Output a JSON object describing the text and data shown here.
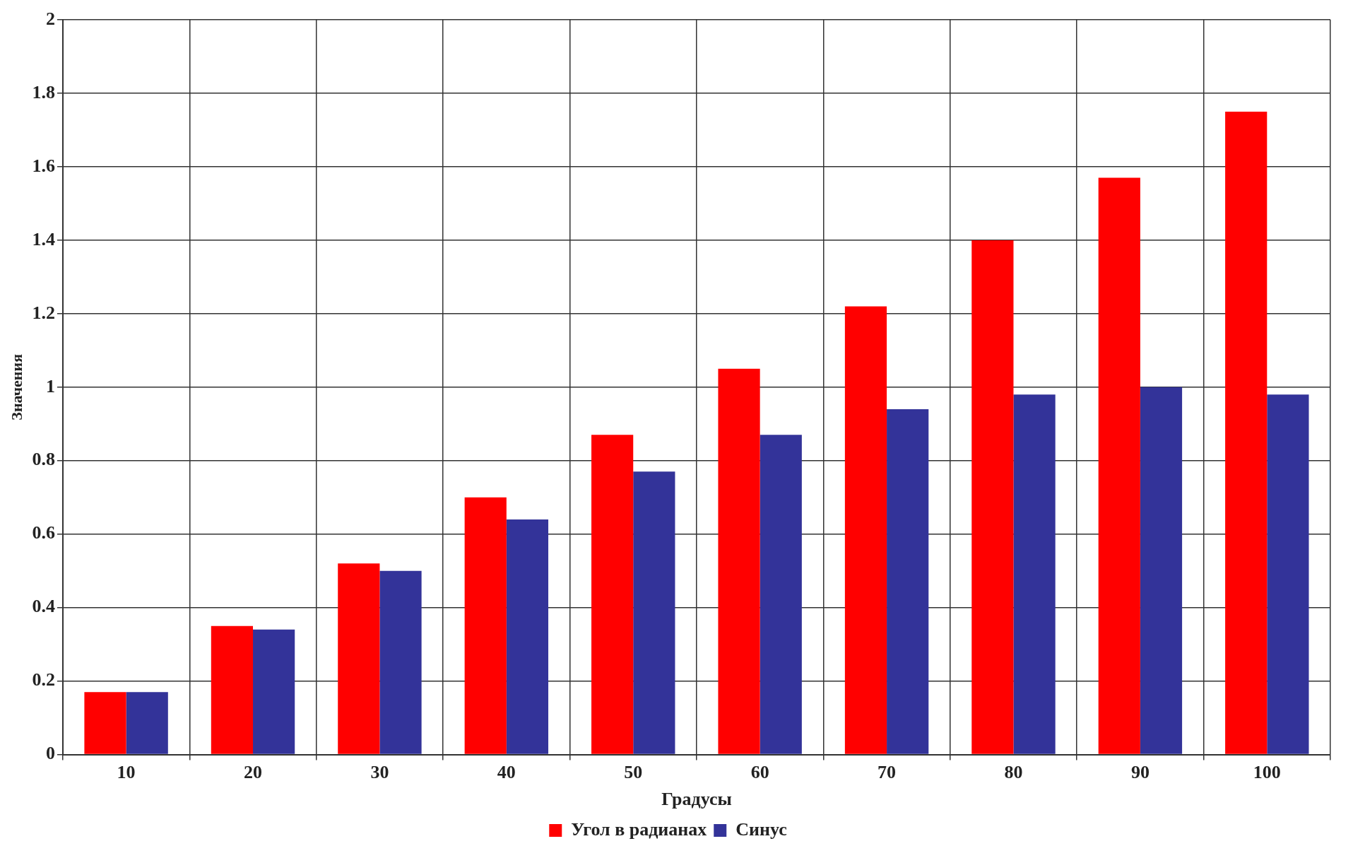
{
  "chart_data": {
    "type": "bar",
    "xlabel": "Градусы",
    "ylabel": "Значения",
    "categories": [
      "10",
      "20",
      "30",
      "40",
      "50",
      "60",
      "70",
      "80",
      "90",
      "100"
    ],
    "series": [
      {
        "name": "Угол в радианах",
        "color": "#ff0000",
        "values": [
          0.17,
          0.35,
          0.52,
          0.7,
          0.87,
          1.05,
          1.22,
          1.4,
          1.57,
          1.75
        ]
      },
      {
        "name": "Синус",
        "color": "#333399",
        "values": [
          0.17,
          0.34,
          0.5,
          0.64,
          0.77,
          0.87,
          0.94,
          0.98,
          1.0,
          0.98
        ]
      }
    ],
    "ylim": [
      0,
      2
    ],
    "yticks": [
      0,
      0.2,
      0.4,
      0.6,
      0.8,
      1,
      1.2,
      1.4,
      1.6,
      1.8,
      2
    ],
    "grid": true,
    "legend": "bottom"
  }
}
